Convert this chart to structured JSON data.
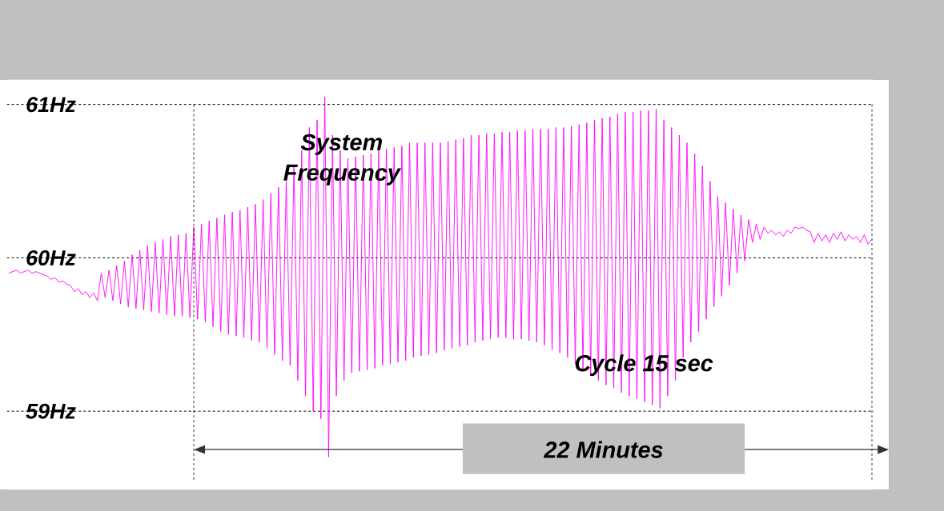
{
  "chart_data": {
    "type": "line",
    "grid": "y",
    "line_style": "solid",
    "marker": "none",
    "tick_labels": "y",
    "ylim": [
      58.49,
      61.16
    ],
    "yticks": [
      {
        "value": 59,
        "label": "59Hz"
      },
      {
        "value": 60,
        "label": "60Hz"
      },
      {
        "value": 61,
        "label": "61Hz"
      }
    ],
    "categories": [
      null,
      null,
      null,
      null,
      null,
      null,
      null,
      null,
      null,
      null,
      null,
      null,
      null,
      null,
      null,
      null,
      null,
      null,
      null,
      null,
      null,
      null,
      null,
      null,
      null,
      null,
      null,
      null,
      null,
      null,
      null,
      null,
      null,
      null,
      null,
      null,
      null,
      null,
      null,
      null,
      null,
      null,
      null,
      null,
      null,
      null,
      null,
      null,
      null,
      null,
      null,
      null,
      null,
      null,
      null,
      null,
      null,
      null,
      null,
      null,
      null,
      null,
      null,
      null,
      null,
      null,
      null,
      null,
      null,
      null,
      null,
      null,
      null,
      null,
      null,
      null,
      null,
      null,
      null,
      null,
      null,
      null,
      null,
      null,
      null,
      null,
      null,
      null,
      null,
      null,
      null,
      null,
      null,
      null,
      null,
      null,
      null,
      null,
      null,
      null,
      null,
      null,
      null,
      null,
      null,
      null,
      null,
      null,
      null,
      null,
      null,
      null,
      null,
      null,
      null,
      null,
      null,
      null,
      null,
      null,
      null,
      null,
      null,
      null,
      null,
      null,
      null,
      null,
      null,
      null,
      null,
      null,
      null,
      null,
      null,
      null,
      null,
      null,
      null,
      null,
      null,
      null,
      null,
      null,
      null,
      null,
      null,
      null,
      null,
      null,
      null,
      null,
      null,
      null,
      null,
      null,
      null,
      null,
      null,
      null,
      null,
      null,
      null,
      null,
      null,
      null,
      null,
      null,
      null,
      null,
      null,
      null,
      null,
      null,
      null,
      null,
      null,
      null,
      null,
      null,
      null,
      null,
      null,
      null,
      null,
      null,
      null,
      null,
      null,
      null,
      null,
      null,
      null,
      null,
      null,
      null,
      null,
      null,
      null,
      null,
      null,
      null,
      null,
      null,
      null,
      null,
      null,
      null,
      null,
      null,
      null,
      null,
      null,
      null,
      null,
      null,
      null,
      null,
      null,
      null,
      null,
      null,
      null,
      null,
      null
    ],
    "series": [
      {
        "color": "#ff00ff",
        "values": [
          59.9,
          59.91,
          59.92,
          59.9,
          59.91,
          59.92,
          59.9,
          59.91,
          59.9,
          59.89,
          59.88,
          59.86,
          59.87,
          59.84,
          59.85,
          59.83,
          59.82,
          59.78,
          59.8,
          59.76,
          59.78,
          59.74,
          59.77,
          59.72,
          59.9,
          59.74,
          59.92,
          59.72,
          59.95,
          59.7,
          59.98,
          59.68,
          60.02,
          59.67,
          60.05,
          59.66,
          60.08,
          59.65,
          60.1,
          59.64,
          60.12,
          59.63,
          60.14,
          59.62,
          60.15,
          59.62,
          60.16,
          59.61,
          60.2,
          59.6,
          60.22,
          59.58,
          60.24,
          59.55,
          60.26,
          59.52,
          60.28,
          59.5,
          60.3,
          59.49,
          60.31,
          59.48,
          60.33,
          59.46,
          60.35,
          59.45,
          60.38,
          59.41,
          60.42,
          59.37,
          60.46,
          59.33,
          60.5,
          59.3,
          60.6,
          59.2,
          60.7,
          59.1,
          60.85,
          59.0,
          60.9,
          58.95,
          61.05,
          58.7,
          60.8,
          59.1,
          60.7,
          59.2,
          60.65,
          59.25,
          60.66,
          59.26,
          60.67,
          59.27,
          60.68,
          59.28,
          60.7,
          59.3,
          60.71,
          59.31,
          60.72,
          59.32,
          60.73,
          59.33,
          60.75,
          59.35,
          60.75,
          59.36,
          60.75,
          59.37,
          60.75,
          59.38,
          60.75,
          59.4,
          60.76,
          59.41,
          60.77,
          59.42,
          60.78,
          59.43,
          60.8,
          59.45,
          60.8,
          59.46,
          60.81,
          59.47,
          60.81,
          59.48,
          60.82,
          59.48,
          60.82,
          59.47,
          60.83,
          59.47,
          60.83,
          59.46,
          60.84,
          59.45,
          60.84,
          59.43,
          60.84,
          59.4,
          60.85,
          59.38,
          60.85,
          59.35,
          60.86,
          59.31,
          60.87,
          59.27,
          60.88,
          59.23,
          60.9,
          59.2,
          60.91,
          59.17,
          60.92,
          59.15,
          60.94,
          59.12,
          60.95,
          59.1,
          60.95,
          59.08,
          60.96,
          59.06,
          60.96,
          59.04,
          60.97,
          59.02,
          60.9,
          59.1,
          60.85,
          59.2,
          60.8,
          59.35,
          60.75,
          59.45,
          60.68,
          59.52,
          60.6,
          59.6,
          60.5,
          59.68,
          60.4,
          59.75,
          60.36,
          59.82,
          60.32,
          59.9,
          60.28,
          59.98,
          60.25,
          60.1,
          60.22,
          60.12,
          60.2,
          60.16,
          60.18,
          60.15,
          60.17,
          60.14,
          60.18,
          60.16,
          60.2,
          60.19,
          60.2,
          60.18,
          60.17,
          60.1,
          60.16,
          60.11,
          60.15,
          60.1,
          60.16,
          60.12,
          60.17,
          60.11,
          60.15,
          60.12,
          60.14,
          60.1,
          60.15,
          60.09,
          60.12
        ]
      }
    ],
    "annotations": [
      "System Frequency",
      "Cycle 15 sec",
      "22 Minutes"
    ]
  }
}
